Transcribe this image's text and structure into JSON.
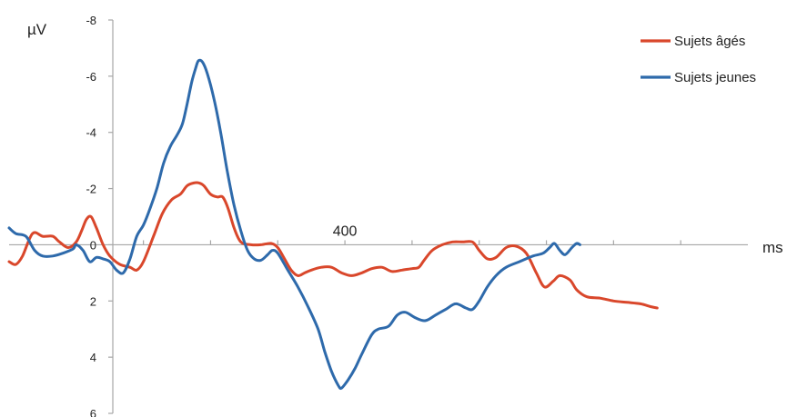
{
  "chart_data": {
    "type": "line",
    "title": "",
    "ylabel": "µV",
    "xlabel": "ms",
    "x_tick_labels": [
      {
        "x": 400,
        "label": "400"
      }
    ],
    "y_ticks": [
      -8,
      -6,
      -4,
      -2,
      0,
      2,
      4,
      6
    ],
    "y_tick_labels": [
      "-8",
      "-6",
      "-4",
      "-2",
      "0",
      "2",
      "4",
      "6"
    ],
    "y_inverted": true,
    "ylim": [
      -8,
      6
    ],
    "xlim": [
      -100,
      1000
    ],
    "x_minor_ticks": [
      0,
      100,
      200,
      300,
      400,
      500,
      600,
      700,
      800,
      900
    ],
    "grid": false,
    "legend_position": "top-right",
    "colors": {
      "orange": "#d9472b",
      "blue": "#2e6aab"
    },
    "series": [
      {
        "name": "Sujets âgés",
        "color": "#d9472b",
        "points": [
          [
            -100,
            0.6
          ],
          [
            -90,
            0.7
          ],
          [
            -80,
            0.4
          ],
          [
            -65,
            -0.4
          ],
          [
            -50,
            -0.3
          ],
          [
            -35,
            -0.3
          ],
          [
            -25,
            -0.1
          ],
          [
            -12,
            0.1
          ],
          [
            0,
            -0.1
          ],
          [
            8,
            -0.5
          ],
          [
            15,
            -0.9
          ],
          [
            22,
            -1.0
          ],
          [
            30,
            -0.6
          ],
          [
            40,
            0.0
          ],
          [
            50,
            0.4
          ],
          [
            65,
            0.7
          ],
          [
            80,
            0.8
          ],
          [
            90,
            0.9
          ],
          [
            100,
            0.6
          ],
          [
            115,
            -0.3
          ],
          [
            128,
            -1.1
          ],
          [
            142,
            -1.6
          ],
          [
            155,
            -1.8
          ],
          [
            165,
            -2.1
          ],
          [
            175,
            -2.2
          ],
          [
            183,
            -2.2
          ],
          [
            190,
            -2.1
          ],
          [
            200,
            -1.8
          ],
          [
            210,
            -1.7
          ],
          [
            218,
            -1.7
          ],
          [
            226,
            -1.3
          ],
          [
            235,
            -0.6
          ],
          [
            245,
            -0.1
          ],
          [
            260,
            0.0
          ],
          [
            275,
            0.0
          ],
          [
            290,
            -0.05
          ],
          [
            300,
            0.1
          ],
          [
            310,
            0.5
          ],
          [
            320,
            0.9
          ],
          [
            330,
            1.1
          ],
          [
            340,
            1.0
          ],
          [
            350,
            0.9
          ],
          [
            365,
            0.8
          ],
          [
            380,
            0.8
          ],
          [
            395,
            1.0
          ],
          [
            410,
            1.1
          ],
          [
            425,
            1.0
          ],
          [
            440,
            0.85
          ],
          [
            455,
            0.8
          ],
          [
            470,
            0.95
          ],
          [
            485,
            0.9
          ],
          [
            500,
            0.85
          ],
          [
            510,
            0.8
          ],
          [
            518,
            0.55
          ],
          [
            530,
            0.2
          ],
          [
            545,
            0.0
          ],
          [
            560,
            -0.1
          ],
          [
            575,
            -0.1
          ],
          [
            590,
            -0.1
          ],
          [
            600,
            0.2
          ],
          [
            612,
            0.5
          ],
          [
            625,
            0.45
          ],
          [
            640,
            0.1
          ],
          [
            655,
            0.05
          ],
          [
            670,
            0.3
          ],
          [
            685,
            1.0
          ],
          [
            697,
            1.5
          ],
          [
            710,
            1.3
          ],
          [
            720,
            1.1
          ],
          [
            735,
            1.25
          ],
          [
            745,
            1.6
          ],
          [
            760,
            1.85
          ],
          [
            780,
            1.9
          ],
          [
            800,
            2.0
          ],
          [
            820,
            2.05
          ],
          [
            840,
            2.1
          ],
          [
            855,
            2.2
          ],
          [
            865,
            2.25
          ]
        ]
      },
      {
        "name": "Sujets jeunes",
        "color": "#2e6aab",
        "points": [
          [
            -100,
            -0.6
          ],
          [
            -90,
            -0.4
          ],
          [
            -75,
            -0.3
          ],
          [
            -62,
            0.2
          ],
          [
            -50,
            0.4
          ],
          [
            -35,
            0.4
          ],
          [
            -20,
            0.3
          ],
          [
            -5,
            0.15
          ],
          [
            0,
            0.0
          ],
          [
            10,
            0.2
          ],
          [
            20,
            0.6
          ],
          [
            30,
            0.45
          ],
          [
            40,
            0.5
          ],
          [
            50,
            0.6
          ],
          [
            60,
            0.9
          ],
          [
            70,
            1.0
          ],
          [
            80,
            0.5
          ],
          [
            90,
            -0.3
          ],
          [
            100,
            -0.7
          ],
          [
            110,
            -1.3
          ],
          [
            120,
            -2.0
          ],
          [
            130,
            -2.9
          ],
          [
            140,
            -3.5
          ],
          [
            150,
            -3.9
          ],
          [
            158,
            -4.3
          ],
          [
            165,
            -5.0
          ],
          [
            172,
            -5.8
          ],
          [
            178,
            -6.3
          ],
          [
            182,
            -6.55
          ],
          [
            188,
            -6.5
          ],
          [
            195,
            -6.1
          ],
          [
            205,
            -5.2
          ],
          [
            215,
            -4.0
          ],
          [
            225,
            -2.6
          ],
          [
            235,
            -1.4
          ],
          [
            245,
            -0.5
          ],
          [
            255,
            0.2
          ],
          [
            265,
            0.5
          ],
          [
            275,
            0.55
          ],
          [
            285,
            0.35
          ],
          [
            292,
            0.2
          ],
          [
            300,
            0.3
          ],
          [
            315,
            0.9
          ],
          [
            330,
            1.5
          ],
          [
            345,
            2.2
          ],
          [
            360,
            3.0
          ],
          [
            370,
            3.8
          ],
          [
            380,
            4.5
          ],
          [
            390,
            5.0
          ],
          [
            395,
            5.1
          ],
          [
            405,
            4.8
          ],
          [
            415,
            4.4
          ],
          [
            425,
            3.9
          ],
          [
            440,
            3.2
          ],
          [
            450,
            3.0
          ],
          [
            465,
            2.9
          ],
          [
            478,
            2.5
          ],
          [
            490,
            2.4
          ],
          [
            505,
            2.6
          ],
          [
            520,
            2.7
          ],
          [
            535,
            2.5
          ],
          [
            550,
            2.3
          ],
          [
            565,
            2.1
          ],
          [
            580,
            2.25
          ],
          [
            590,
            2.3
          ],
          [
            600,
            2.0
          ],
          [
            612,
            1.5
          ],
          [
            625,
            1.1
          ],
          [
            640,
            0.8
          ],
          [
            660,
            0.6
          ],
          [
            680,
            0.4
          ],
          [
            695,
            0.3
          ],
          [
            705,
            0.1
          ],
          [
            712,
            -0.05
          ],
          [
            720,
            0.2
          ],
          [
            728,
            0.35
          ],
          [
            738,
            0.1
          ],
          [
            745,
            -0.05
          ],
          [
            750,
            0.0
          ]
        ]
      }
    ]
  }
}
